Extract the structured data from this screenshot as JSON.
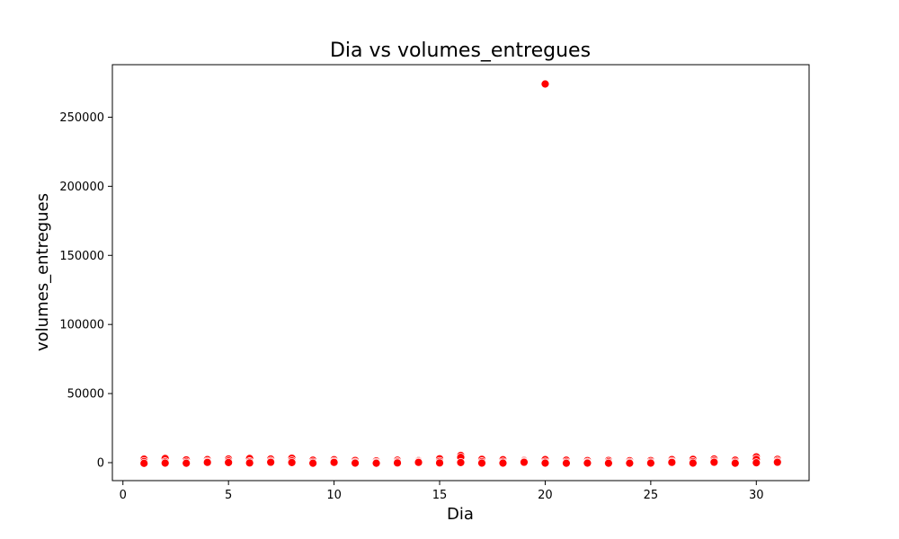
{
  "chart_data": {
    "type": "scatter",
    "title": "Dia vs volumes_entregues",
    "xlabel": "Dia",
    "ylabel": "volumes_entregues",
    "xlim": [
      -0.5,
      32.5
    ],
    "ylim": [
      -13000,
      288000
    ],
    "xticks": [
      0,
      5,
      10,
      15,
      20,
      25,
      30
    ],
    "yticks": [
      0,
      50000,
      100000,
      150000,
      200000,
      250000
    ],
    "grid": false,
    "marker_color": "#ff0000",
    "marker_edge_color": "#ffffff",
    "points": [
      {
        "x": 1,
        "y": 2500
      },
      {
        "x": 1,
        "y": 800
      },
      {
        "x": 1,
        "y": -500
      },
      {
        "x": 2,
        "y": 3000
      },
      {
        "x": 2,
        "y": 600
      },
      {
        "x": 2,
        "y": -300
      },
      {
        "x": 3,
        "y": 2000
      },
      {
        "x": 3,
        "y": 500
      },
      {
        "x": 3,
        "y": -400
      },
      {
        "x": 4,
        "y": 2200
      },
      {
        "x": 4,
        "y": 900
      },
      {
        "x": 4,
        "y": 200
      },
      {
        "x": 5,
        "y": 2600
      },
      {
        "x": 5,
        "y": 1200
      },
      {
        "x": 5,
        "y": 100
      },
      {
        "x": 6,
        "y": 3000
      },
      {
        "x": 6,
        "y": 700
      },
      {
        "x": 6,
        "y": -200
      },
      {
        "x": 7,
        "y": 2600
      },
      {
        "x": 7,
        "y": 1100
      },
      {
        "x": 7,
        "y": 300
      },
      {
        "x": 8,
        "y": 3200
      },
      {
        "x": 8,
        "y": 1300
      },
      {
        "x": 8,
        "y": 100
      },
      {
        "x": 9,
        "y": 1800
      },
      {
        "x": 9,
        "y": 400
      },
      {
        "x": 9,
        "y": -400
      },
      {
        "x": 10,
        "y": 2100
      },
      {
        "x": 10,
        "y": 900
      },
      {
        "x": 10,
        "y": 200
      },
      {
        "x": 11,
        "y": 1600
      },
      {
        "x": 11,
        "y": 300
      },
      {
        "x": 11,
        "y": -300
      },
      {
        "x": 12,
        "y": 1200
      },
      {
        "x": 12,
        "y": 200
      },
      {
        "x": 12,
        "y": -400
      },
      {
        "x": 13,
        "y": 1800
      },
      {
        "x": 13,
        "y": 600
      },
      {
        "x": 13,
        "y": -200
      },
      {
        "x": 14,
        "y": 1500
      },
      {
        "x": 14,
        "y": 900
      },
      {
        "x": 14,
        "y": 200
      },
      {
        "x": 15,
        "y": 2800
      },
      {
        "x": 15,
        "y": 900
      },
      {
        "x": 15,
        "y": -200
      },
      {
        "x": 16,
        "y": 5200
      },
      {
        "x": 16,
        "y": 3800
      },
      {
        "x": 16,
        "y": 100
      },
      {
        "x": 17,
        "y": 2400
      },
      {
        "x": 17,
        "y": 700
      },
      {
        "x": 17,
        "y": -300
      },
      {
        "x": 18,
        "y": 2100
      },
      {
        "x": 18,
        "y": 500
      },
      {
        "x": 18,
        "y": -300
      },
      {
        "x": 19,
        "y": 1600
      },
      {
        "x": 19,
        "y": 900
      },
      {
        "x": 19,
        "y": 300
      },
      {
        "x": 20,
        "y": 274000
      },
      {
        "x": 20,
        "y": 2200
      },
      {
        "x": 20,
        "y": 500
      },
      {
        "x": 20,
        "y": -300
      },
      {
        "x": 21,
        "y": 1800
      },
      {
        "x": 21,
        "y": 400
      },
      {
        "x": 21,
        "y": -400
      },
      {
        "x": 22,
        "y": 1500
      },
      {
        "x": 22,
        "y": 300
      },
      {
        "x": 22,
        "y": -300
      },
      {
        "x": 23,
        "y": 1600
      },
      {
        "x": 23,
        "y": 500
      },
      {
        "x": 23,
        "y": -400
      },
      {
        "x": 24,
        "y": 1400
      },
      {
        "x": 24,
        "y": 300
      },
      {
        "x": 24,
        "y": -400
      },
      {
        "x": 25,
        "y": 1500
      },
      {
        "x": 25,
        "y": 400
      },
      {
        "x": 25,
        "y": -300
      },
      {
        "x": 26,
        "y": 2200
      },
      {
        "x": 26,
        "y": 900
      },
      {
        "x": 26,
        "y": 200
      },
      {
        "x": 27,
        "y": 2400
      },
      {
        "x": 27,
        "y": 700
      },
      {
        "x": 27,
        "y": -300
      },
      {
        "x": 28,
        "y": 2600
      },
      {
        "x": 28,
        "y": 1200
      },
      {
        "x": 28,
        "y": 300
      },
      {
        "x": 29,
        "y": 1800
      },
      {
        "x": 29,
        "y": 400
      },
      {
        "x": 29,
        "y": -400
      },
      {
        "x": 30,
        "y": 4200
      },
      {
        "x": 30,
        "y": 2400
      },
      {
        "x": 30,
        "y": -100
      },
      {
        "x": 31,
        "y": 2400
      },
      {
        "x": 31,
        "y": 1100
      },
      {
        "x": 31,
        "y": 300
      }
    ]
  }
}
